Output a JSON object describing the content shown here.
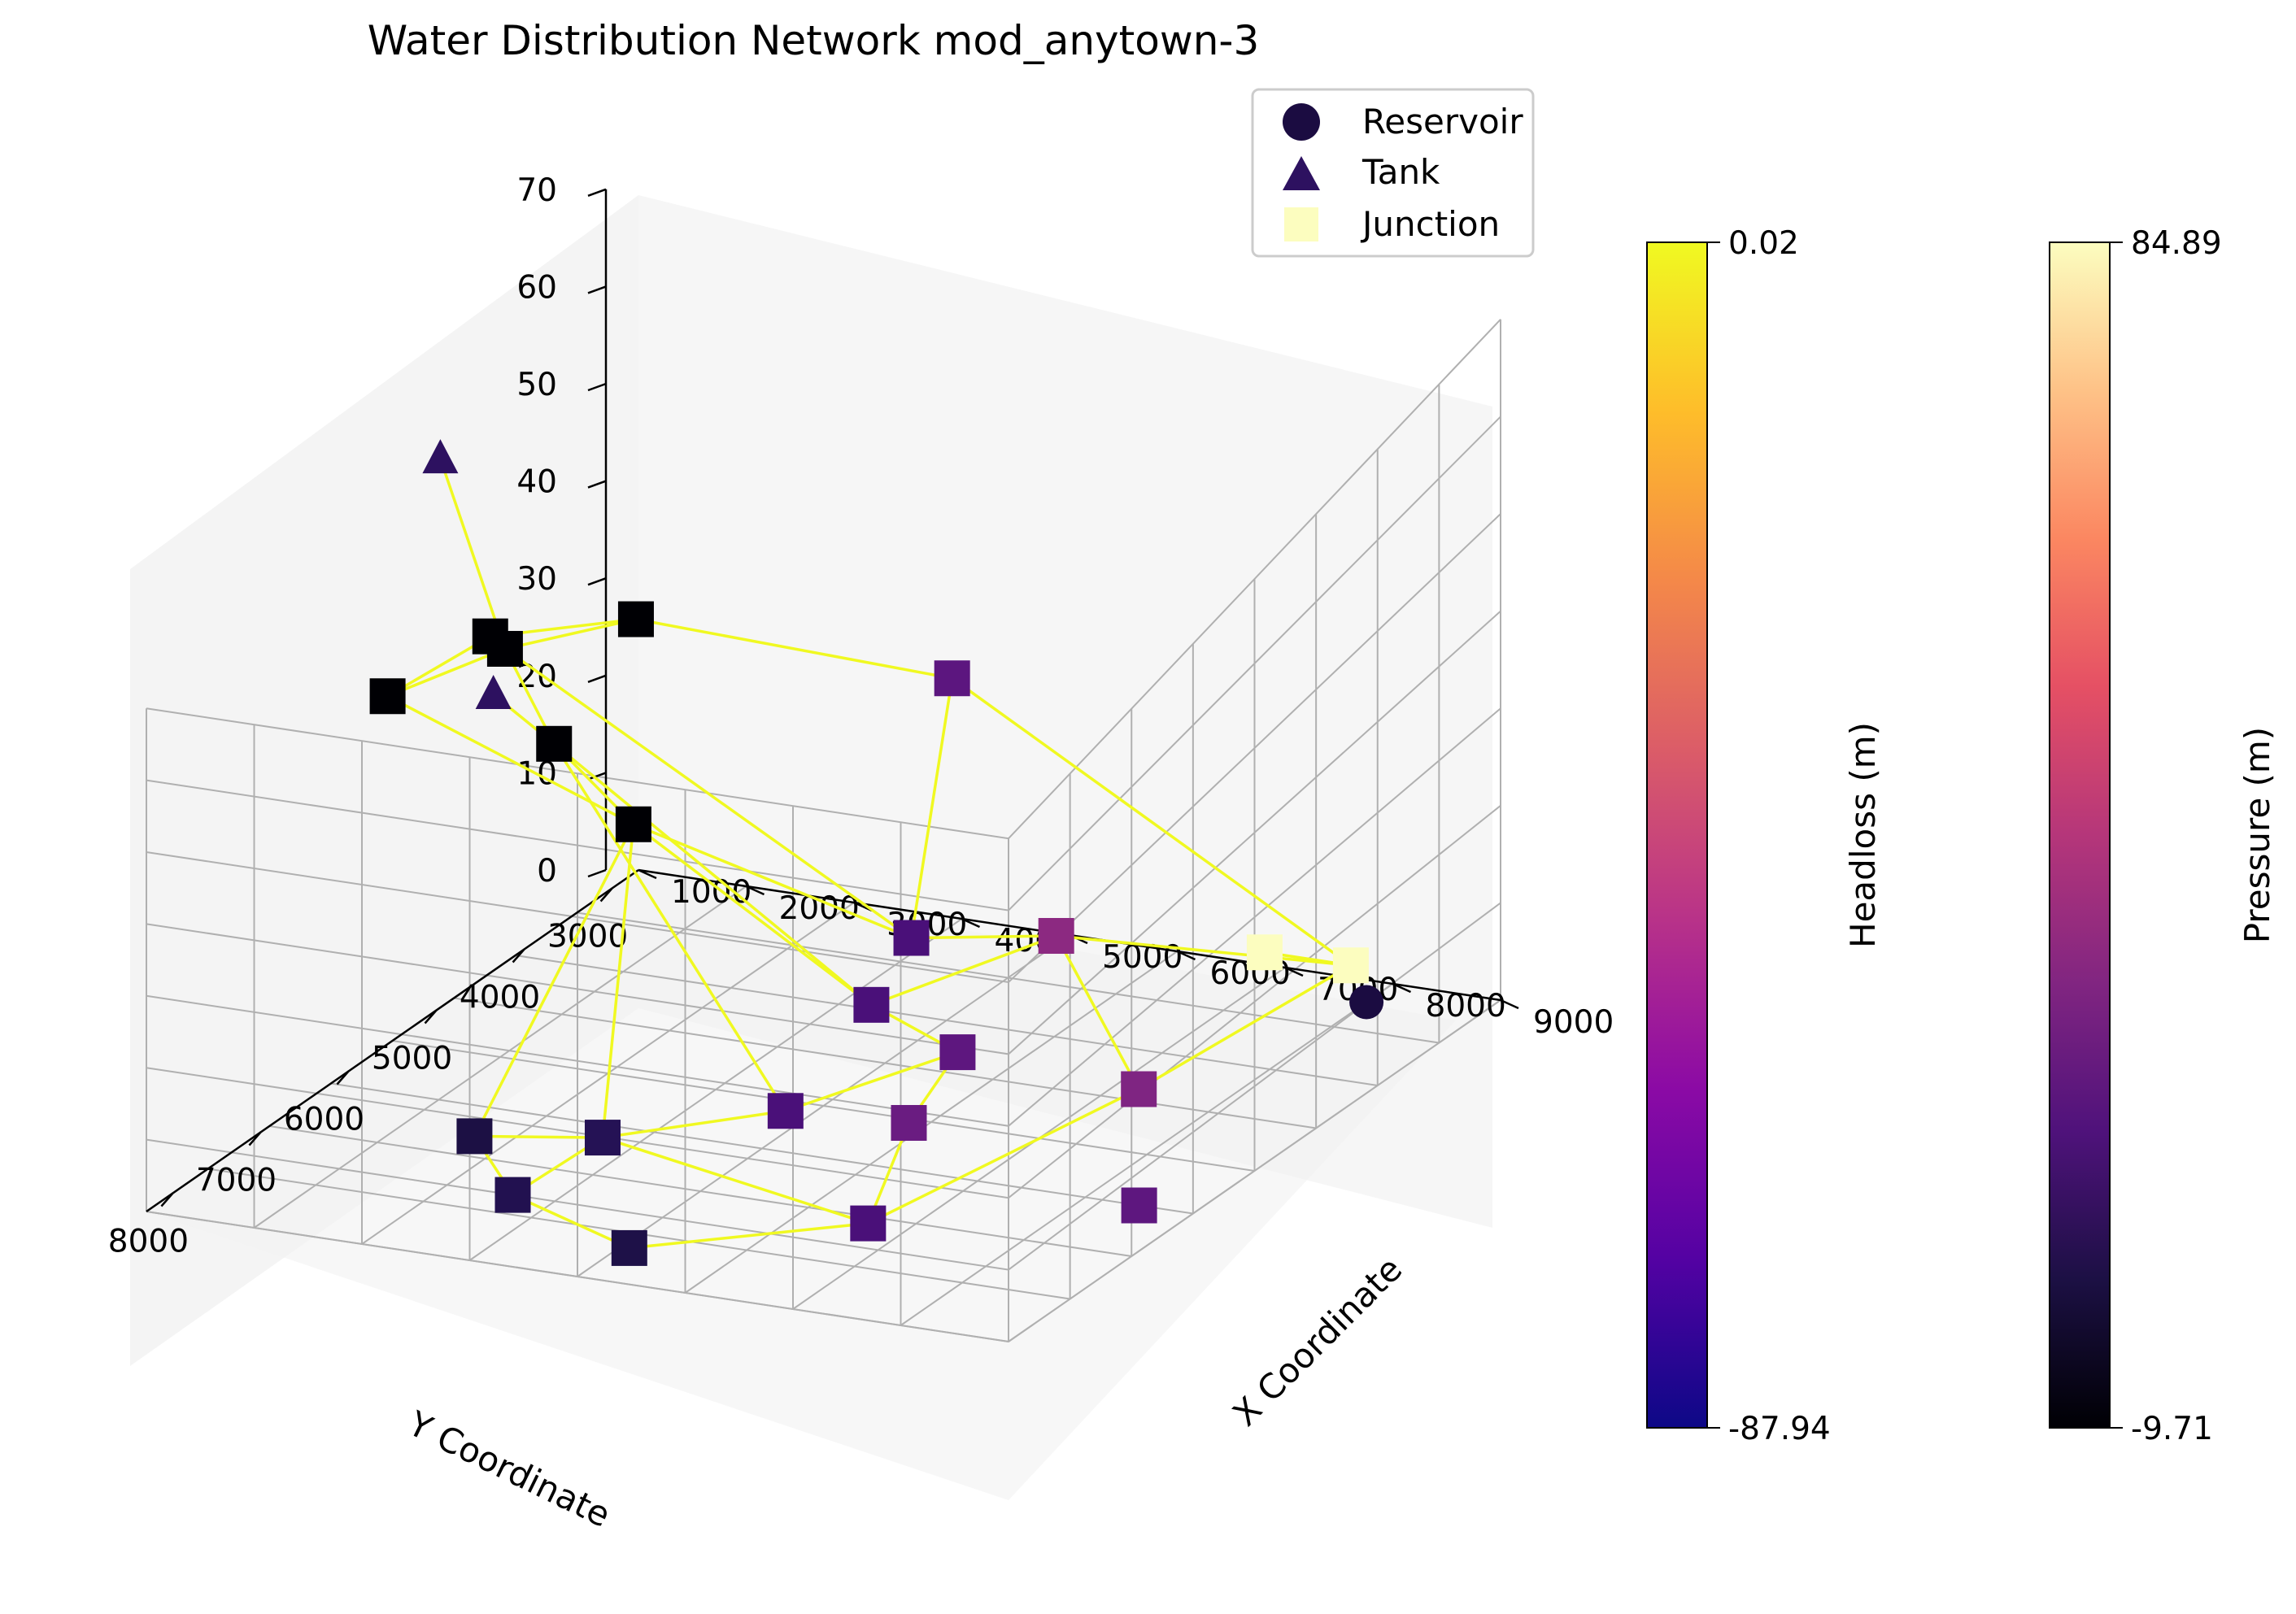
{
  "chart_data": {
    "type": "scatter",
    "title": "Water Distribution Network mod_anytown-3",
    "xlabel": "X Coordinate",
    "ylabel": "Y Coordinate",
    "zlabel": "",
    "x_ticks": [
      "1000",
      "2000",
      "3000",
      "4000",
      "5000",
      "6000",
      "7000",
      "8000",
      "9000"
    ],
    "y_ticks": [
      "3000",
      "4000",
      "5000",
      "6000",
      "7000",
      "8000"
    ],
    "z_ticks": [
      "0",
      "10",
      "20",
      "30",
      "40",
      "50",
      "60",
      "70"
    ],
    "xlim": [
      1000,
      9000
    ],
    "ylim": [
      2700,
      8300
    ],
    "zlim": [
      0,
      70
    ],
    "grid": true,
    "legend_position": "top-right",
    "legend": [
      {
        "label": "Reservoir",
        "marker": "circle",
        "color": "#1b0c41"
      },
      {
        "label": "Tank",
        "marker": "triangle",
        "color": "#2d1160"
      },
      {
        "label": "Junction",
        "marker": "square",
        "color": "#fcfdbf"
      }
    ],
    "colorbars": [
      {
        "label": "Headloss (m)",
        "max": "0.02",
        "min": "-87.94",
        "colormap": "plasma",
        "colors": [
          "#0d0887",
          "#5402a3",
          "#8b0aa5",
          "#b83289",
          "#db5c68",
          "#f48849",
          "#febd2a",
          "#f0f921"
        ]
      },
      {
        "label": "Pressure (m)",
        "max": "84.89",
        "min": "-9.71",
        "colormap": "magma",
        "colors": [
          "#000004",
          "#1c1044",
          "#4f127b",
          "#812581",
          "#b5367a",
          "#e55064",
          "#fb8761",
          "#fec287",
          "#fcfdbf"
        ]
      }
    ],
    "link_color": "#f0f921",
    "nodes": [
      {
        "id": "R",
        "type": "reservoir",
        "x": 8000,
        "y": 3000,
        "z": 0,
        "color": "#1b0c41"
      },
      {
        "id": "J1",
        "type": "junction",
        "x": 8100,
        "y": 3300,
        "z": 6,
        "color": "#fcfdbf"
      },
      {
        "id": "J2",
        "type": "junction",
        "x": 7300,
        "y": 3300,
        "z": 6,
        "color": "#fcfdbf"
      },
      {
        "id": "J3",
        "type": "junction",
        "x": 4400,
        "y": 3300,
        "z": 30,
        "color": "#5c167f"
      },
      {
        "id": "J4",
        "type": "junction",
        "x": 6100,
        "y": 4200,
        "z": 12,
        "color": "#8c2981"
      },
      {
        "id": "J5",
        "type": "junction",
        "x": 5000,
        "y": 4500,
        "z": 12,
        "color": "#4a1079"
      },
      {
        "id": "J6",
        "type": "junction",
        "x": 5200,
        "y": 5200,
        "z": 10,
        "color": "#4a1079"
      },
      {
        "id": "J7",
        "type": "junction",
        "x": 7600,
        "y": 5100,
        "z": 4,
        "color": "#7f2582"
      },
      {
        "id": "J8",
        "type": "junction",
        "x": 6000,
        "y": 5200,
        "z": 6,
        "color": "#5e177f"
      },
      {
        "id": "J9",
        "type": "junction",
        "x": 6200,
        "y": 6000,
        "z": 4,
        "color": "#6a1c81"
      },
      {
        "id": "J10",
        "type": "junction",
        "x": 5300,
        "y": 6300,
        "z": 6,
        "color": "#4a1079"
      },
      {
        "id": "J11",
        "type": "junction",
        "x": 8500,
        "y": 6200,
        "z": 0,
        "color": "#5e177f"
      },
      {
        "id": "J12",
        "type": "junction",
        "x": 6800,
        "y": 7200,
        "z": 2,
        "color": "#4a1079"
      },
      {
        "id": "J13",
        "type": "junction",
        "x": 4500,
        "y": 7400,
        "z": 10,
        "color": "#251255"
      },
      {
        "id": "J14",
        "type": "junction",
        "x": 5400,
        "y": 8200,
        "z": 4,
        "color": "#1e1148"
      },
      {
        "id": "J15",
        "type": "junction",
        "x": 4400,
        "y": 8300,
        "z": 10,
        "color": "#221150"
      },
      {
        "id": "J16",
        "type": "junction",
        "x": 3800,
        "y": 8000,
        "z": 14,
        "color": "#1c1044"
      },
      {
        "id": "J17",
        "type": "junction",
        "x": 2200,
        "y": 4200,
        "z": 40,
        "color": "#000004"
      },
      {
        "id": "J18",
        "type": "junction",
        "x": 1500,
        "y": 5000,
        "z": 44,
        "color": "#000004"
      },
      {
        "id": "J19",
        "type": "junction",
        "x": 1800,
        "y": 5200,
        "z": 45,
        "color": "#000004"
      },
      {
        "id": "J20",
        "type": "junction",
        "x": 1200,
        "y": 5800,
        "z": 44,
        "color": "#000004"
      },
      {
        "id": "J21",
        "type": "junction",
        "x": 2500,
        "y": 5500,
        "z": 38,
        "color": "#000004"
      },
      {
        "id": "J22",
        "type": "junction",
        "x": 3400,
        "y": 5700,
        "z": 32,
        "color": "#000004"
      },
      {
        "id": "T1",
        "type": "tank",
        "x": 1200,
        "y": 5200,
        "z": 66,
        "color": "#2d1160"
      },
      {
        "id": "T2",
        "type": "tank",
        "x": 2100,
        "y": 5700,
        "z": 45,
        "color": "#2d1160"
      }
    ],
    "links": [
      [
        "J1",
        "J2"
      ],
      [
        "J1",
        "J3"
      ],
      [
        "J1",
        "J4"
      ],
      [
        "J1",
        "J7"
      ],
      [
        "J3",
        "J17"
      ],
      [
        "J3",
        "J5"
      ],
      [
        "J4",
        "J5"
      ],
      [
        "J4",
        "J6"
      ],
      [
        "J4",
        "J7"
      ],
      [
        "J5",
        "J19"
      ],
      [
        "J5",
        "J22"
      ],
      [
        "J6",
        "J8"
      ],
      [
        "J6",
        "J22"
      ],
      [
        "J6",
        "J21"
      ],
      [
        "J7",
        "J12"
      ],
      [
        "J8",
        "J9"
      ],
      [
        "J8",
        "J10"
      ],
      [
        "J9",
        "J12"
      ],
      [
        "J10",
        "J21"
      ],
      [
        "J10",
        "J13"
      ],
      [
        "J12",
        "J13"
      ],
      [
        "J12",
        "J14"
      ],
      [
        "J13",
        "J15"
      ],
      [
        "J13",
        "J22"
      ],
      [
        "J14",
        "J15"
      ],
      [
        "J15",
        "J16"
      ],
      [
        "J16",
        "J22"
      ],
      [
        "J16",
        "J13"
      ],
      [
        "J17",
        "J18"
      ],
      [
        "J17",
        "J19"
      ],
      [
        "J18",
        "J19"
      ],
      [
        "J18",
        "J20"
      ],
      [
        "J19",
        "J20"
      ],
      [
        "J19",
        "J21"
      ],
      [
        "J20",
        "J22"
      ],
      [
        "J21",
        "J22"
      ],
      [
        "J21",
        "T2"
      ],
      [
        "J19",
        "T1"
      ]
    ]
  }
}
